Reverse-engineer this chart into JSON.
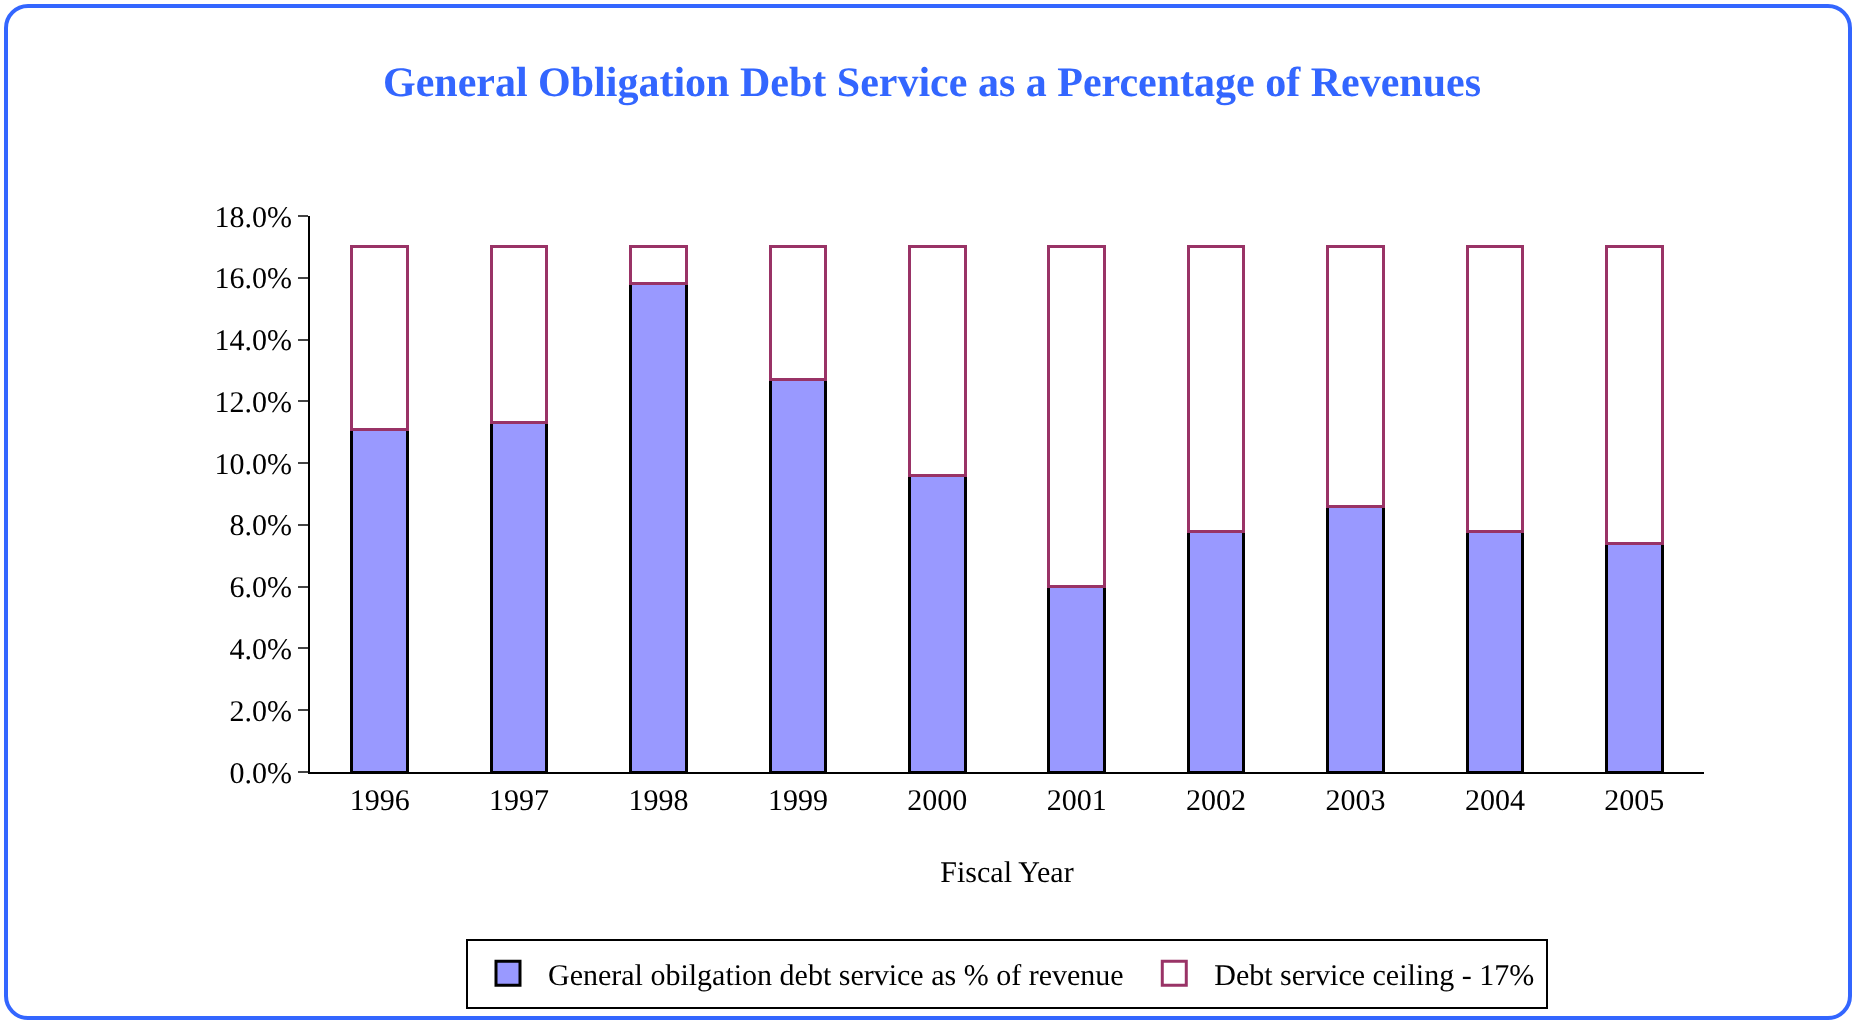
{
  "chart_data": {
    "type": "bar",
    "title": "General Obligation Debt Service as a Percentage of Revenues",
    "xlabel": "Fiscal Year",
    "categories": [
      "1996",
      "1997",
      "1998",
      "1999",
      "2000",
      "2001",
      "2002",
      "2003",
      "2004",
      "2005"
    ],
    "stacked": true,
    "series": [
      {
        "name": "General obilgation debt service as % of revenue",
        "color": "#9999ff",
        "values": [
          11.1,
          11.3,
          15.8,
          12.7,
          9.6,
          6.0,
          7.8,
          8.6,
          7.8,
          7.4
        ]
      },
      {
        "name": "Debt service ceiling - 17%",
        "color": "#ffffff",
        "values": [
          5.9,
          5.7,
          1.2,
          4.3,
          7.4,
          11.0,
          9.2,
          8.4,
          9.2,
          9.6
        ]
      }
    ],
    "ylim": [
      0,
      18
    ],
    "yticks": [
      {
        "value": 0,
        "label": "0.0%"
      },
      {
        "value": 2,
        "label": "2.0%"
      },
      {
        "value": 4,
        "label": "4.0%"
      },
      {
        "value": 6,
        "label": "6.0%"
      },
      {
        "value": 8,
        "label": "8.0%"
      },
      {
        "value": 10,
        "label": "10.0%"
      },
      {
        "value": 12,
        "label": "12.0%"
      },
      {
        "value": 14,
        "label": "14.0%"
      },
      {
        "value": 16,
        "label": "16.0%"
      },
      {
        "value": 18,
        "label": "18.0%"
      }
    ],
    "grid": false,
    "legend": "bottom"
  }
}
